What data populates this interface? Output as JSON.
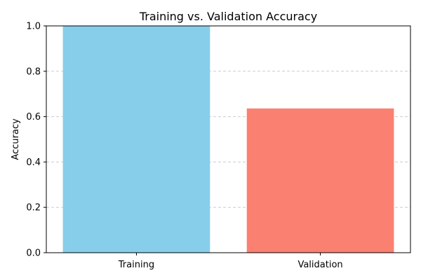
{
  "chart_data": {
    "type": "bar",
    "title": "Training vs. Validation Accuracy",
    "xlabel": "",
    "ylabel": "Accuracy",
    "categories": [
      "Training",
      "Validation"
    ],
    "values": [
      1.0,
      0.636
    ],
    "colors": [
      "#87ceeb",
      "#fa8072"
    ],
    "ylim": [
      0,
      1.0
    ],
    "yticks": [
      0.0,
      0.2,
      0.4,
      0.6,
      0.8,
      1.0
    ],
    "ytick_labels": [
      "0.0",
      "0.2",
      "0.4",
      "0.6",
      "0.8",
      "1.0"
    ],
    "grid": {
      "axis": "y",
      "style": "dashed",
      "color": "#cccccc"
    },
    "legend": "none"
  }
}
